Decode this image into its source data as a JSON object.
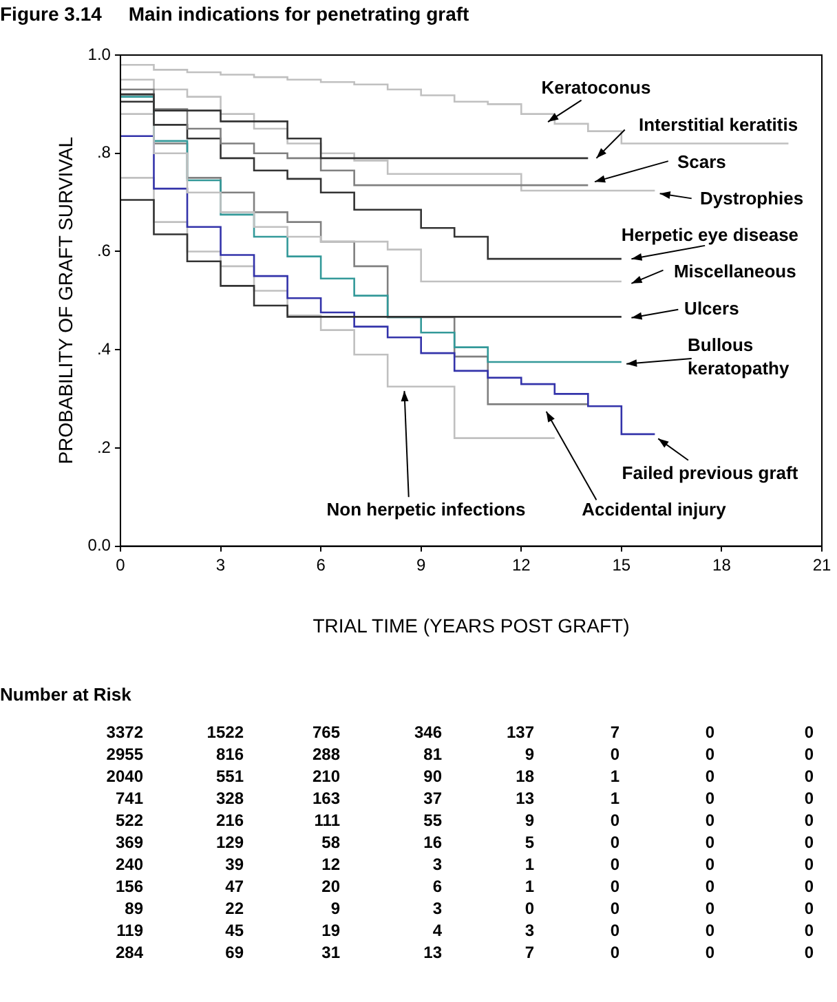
{
  "chart_data": {
    "type": "step",
    "title": "Figure 3.14     Main indications for penetrating graft",
    "xlabel": "TRIAL TIME (YEARS POST GRAFT)",
    "ylabel": "PROBABILITY OF GRAFT SURVIVAL",
    "xlim": [
      0,
      21
    ],
    "xticks": [
      0,
      3,
      6,
      9,
      12,
      15,
      18,
      21
    ],
    "ylim": [
      0,
      1
    ],
    "yticks": [
      {
        "value": 0,
        "label": "0.0"
      },
      {
        "value": 0.2,
        "label": ".2"
      },
      {
        "value": 0.4,
        "label": ".4"
      },
      {
        "value": 0.6,
        "label": ".6"
      },
      {
        "value": 0.8,
        "label": ".8"
      },
      {
        "value": 1,
        "label": "1.0"
      }
    ],
    "grid": false,
    "legend": false,
    "series": [
      {
        "name": "Keratoconus",
        "color": "#c0c0c0",
        "x": [
          0,
          1,
          2,
          3,
          4,
          5,
          6,
          7,
          8,
          9,
          10,
          11,
          12,
          13,
          14,
          15,
          20
        ],
        "values": [
          0.98,
          0.97,
          0.965,
          0.96,
          0.955,
          0.95,
          0.945,
          0.94,
          0.93,
          0.918,
          0.905,
          0.9,
          0.88,
          0.86,
          0.845,
          0.82,
          0.82
        ]
      },
      {
        "name": "Interstitial keratitis",
        "color": "#333333",
        "x": [
          0,
          1,
          3,
          5,
          6,
          14
        ],
        "values": [
          0.92,
          0.887,
          0.865,
          0.83,
          0.79,
          0.79
        ]
      },
      {
        "name": "Scars",
        "color": "#808080",
        "x": [
          0,
          1,
          2,
          3,
          4,
          5,
          6,
          7,
          14
        ],
        "values": [
          0.93,
          0.89,
          0.85,
          0.82,
          0.8,
          0.79,
          0.765,
          0.735,
          0.735
        ]
      },
      {
        "name": "Dystrophies",
        "color": "#c0c0c0",
        "x": [
          0,
          1,
          2,
          3,
          4,
          5,
          6,
          7,
          8,
          12,
          16
        ],
        "values": [
          0.95,
          0.93,
          0.915,
          0.88,
          0.85,
          0.82,
          0.8,
          0.785,
          0.758,
          0.724,
          0.724
        ]
      },
      {
        "name": "Herpetic eye disease",
        "color": "#333333",
        "x": [
          0,
          1,
          2,
          3,
          4,
          5,
          6,
          7,
          9,
          10,
          11,
          15
        ],
        "values": [
          0.905,
          0.858,
          0.83,
          0.79,
          0.765,
          0.748,
          0.72,
          0.685,
          0.648,
          0.63,
          0.585,
          0.585
        ]
      },
      {
        "name": "Miscellaneous",
        "color": "#c0c0c0",
        "x": [
          0,
          1,
          2,
          3,
          4,
          5,
          6,
          8,
          9,
          15
        ],
        "values": [
          0.88,
          0.8,
          0.72,
          0.68,
          0.65,
          0.63,
          0.62,
          0.604,
          0.539,
          0.539
        ]
      },
      {
        "name": "Ulcers",
        "color": "#333333",
        "x": [
          0,
          1,
          2,
          3,
          4,
          5,
          15
        ],
        "values": [
          0.705,
          0.635,
          0.58,
          0.53,
          0.49,
          0.467,
          0.467
        ]
      },
      {
        "name": "Bullous keratopathy",
        "color": "#339999",
        "x": [
          0,
          1,
          2,
          3,
          4,
          5,
          6,
          7,
          8,
          9,
          10,
          11,
          15
        ],
        "values": [
          0.915,
          0.825,
          0.745,
          0.675,
          0.63,
          0.59,
          0.545,
          0.51,
          0.466,
          0.435,
          0.405,
          0.375,
          0.375
        ]
      },
      {
        "name": "Failed previous graft",
        "color": "#3333aa",
        "x": [
          0,
          1,
          2,
          3,
          4,
          5,
          6,
          7,
          8,
          9,
          10,
          11,
          12,
          13,
          14,
          15,
          16
        ],
        "values": [
          0.835,
          0.728,
          0.65,
          0.593,
          0.55,
          0.505,
          0.476,
          0.447,
          0.425,
          0.393,
          0.357,
          0.343,
          0.33,
          0.31,
          0.285,
          0.228,
          0.228
        ]
      },
      {
        "name": "Non herpetic infections",
        "color": "#c0c0c0",
        "x": [
          0,
          1,
          2,
          3,
          4,
          5,
          6,
          7,
          8,
          10,
          13
        ],
        "values": [
          0.75,
          0.66,
          0.6,
          0.57,
          0.52,
          0.47,
          0.44,
          0.39,
          0.325,
          0.22,
          0.22
        ]
      },
      {
        "name": "Accidental injury",
        "color": "#808080",
        "x": [
          0,
          1,
          2,
          3,
          4,
          5,
          6,
          7,
          8,
          10,
          11,
          14
        ],
        "values": [
          0.92,
          0.82,
          0.75,
          0.72,
          0.68,
          0.66,
          0.62,
          0.57,
          0.466,
          0.386,
          0.289,
          0.289
        ]
      }
    ],
    "annotations": [
      "Number at Risk",
      "3372 1522 765 346 137 7 0 0",
      "2955 816 288 81 9 0 0 0",
      "2040 551 210 90 18 1 0 0",
      "741 328 163 37 13 1 0 0",
      "522 216 111 55 9 0 0 0",
      "369 129 58 16 5 0 0 0",
      "240 39 12 3 1 0 0 0",
      "156 47 20 6 1 0 0 0",
      "89 22 9 3 0 0 0 0",
      "119 45 19 4 3 0 0 0",
      "284 69 31 13 7 0 0 0"
    ]
  }
}
